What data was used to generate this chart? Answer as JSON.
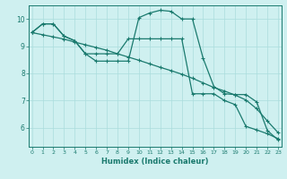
{
  "xlabel": "Humidex (Indice chaleur)",
  "bg_color": "#cff0f0",
  "line_color": "#1a7a6e",
  "grid_color": "#aadddd",
  "x_ticks": [
    0,
    1,
    2,
    3,
    4,
    5,
    6,
    7,
    8,
    9,
    10,
    11,
    12,
    13,
    14,
    15,
    16,
    17,
    18,
    19,
    20,
    21,
    22,
    23
  ],
  "ylim": [
    5.3,
    10.5
  ],
  "xlim": [
    -0.3,
    23.3
  ],
  "y_ticks": [
    6,
    7,
    8,
    9,
    10
  ],
  "line1_x": [
    0,
    1,
    2,
    3,
    4,
    5,
    6,
    7,
    8,
    9,
    10,
    11,
    12,
    13,
    14,
    15,
    16,
    17,
    18,
    19,
    20,
    21,
    22,
    23
  ],
  "line1_y": [
    9.5,
    9.82,
    9.82,
    9.37,
    9.2,
    8.72,
    8.45,
    8.45,
    8.45,
    8.45,
    10.05,
    10.22,
    10.32,
    10.28,
    10.0,
    10.0,
    8.55,
    7.52,
    7.25,
    7.22,
    7.22,
    6.95,
    5.9,
    5.55
  ],
  "line2_x": [
    0,
    1,
    2,
    3,
    4,
    5,
    6,
    7,
    8,
    9,
    10,
    11,
    12,
    13,
    14,
    15,
    16,
    17,
    18,
    19,
    20,
    21,
    22,
    23
  ],
  "line2_y": [
    9.5,
    9.82,
    9.82,
    9.37,
    9.2,
    8.72,
    8.72,
    8.72,
    8.72,
    9.27,
    9.27,
    9.27,
    9.27,
    9.27,
    9.27,
    7.25,
    7.25,
    7.25,
    7.0,
    6.85,
    6.05,
    5.92,
    5.78,
    5.6
  ],
  "line3_x": [
    0,
    1,
    2,
    3,
    4,
    5,
    6,
    7,
    8,
    9,
    10,
    11,
    12,
    13,
    14,
    15,
    16,
    17,
    18,
    19,
    20,
    21,
    22,
    23
  ],
  "line3_y": [
    9.5,
    9.42,
    9.34,
    9.26,
    9.15,
    9.05,
    8.95,
    8.85,
    8.72,
    8.6,
    8.48,
    8.35,
    8.22,
    8.1,
    7.97,
    7.82,
    7.65,
    7.48,
    7.35,
    7.2,
    7.02,
    6.7,
    6.25,
    5.82
  ]
}
